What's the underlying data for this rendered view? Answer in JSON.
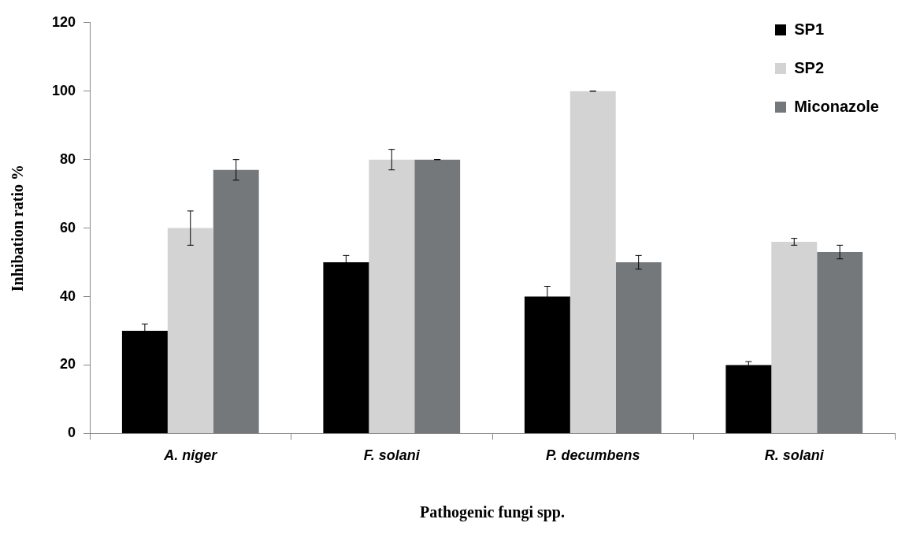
{
  "chart_data": {
    "type": "bar",
    "xlabel": "Pathogenic fungi spp.",
    "ylabel": "Inhibation ratio %",
    "categories": [
      "A. niger",
      "F. solani",
      "P. decumbens",
      "R. solani"
    ],
    "series": [
      {
        "name": "SP1",
        "color": "#000000",
        "values": [
          30,
          50,
          40,
          20
        ],
        "errors": [
          2,
          2,
          3,
          1
        ]
      },
      {
        "name": "SP2",
        "color": "#d3d3d3",
        "values": [
          60,
          80,
          100,
          56
        ],
        "errors": [
          5,
          3,
          0,
          1
        ]
      },
      {
        "name": "Miconazole",
        "color": "#75787b",
        "values": [
          77,
          80,
          50,
          53
        ],
        "errors": [
          3,
          0,
          2,
          2
        ]
      }
    ],
    "ylim": [
      0,
      120
    ],
    "yticks": [
      0,
      20,
      40,
      60,
      80,
      100,
      120
    ],
    "grid": false,
    "legend": "top right"
  }
}
